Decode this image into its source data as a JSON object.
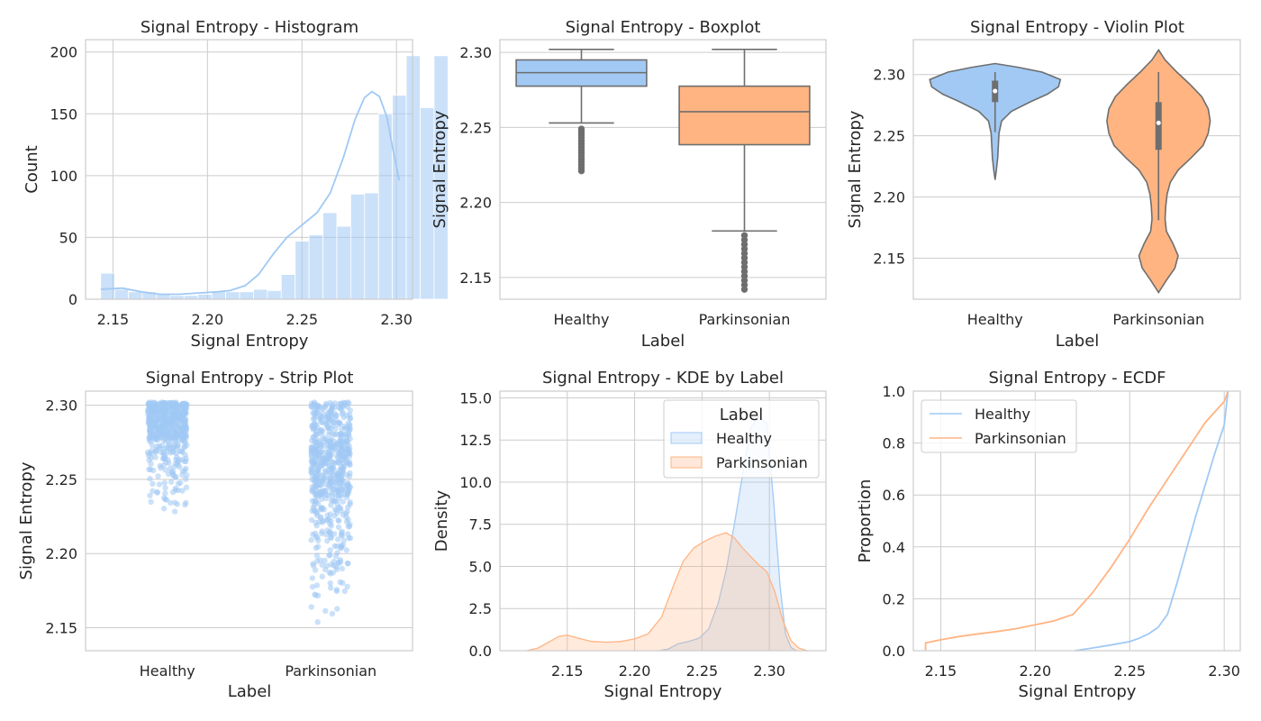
{
  "colors": {
    "healthy": "#a1c9f4",
    "parkinsonian": "#ffb482",
    "box_edge": "#6e6e6e",
    "grid": "#cccccc",
    "spine": "#cccccc",
    "text": "#262626"
  },
  "legend": {
    "title": "Label",
    "labels": [
      "Healthy",
      "Parkinsonian"
    ]
  },
  "chart_data": [
    {
      "id": "hist",
      "type": "bar",
      "title": "Signal Entropy - Histogram",
      "xlabel": "Signal Entropy",
      "ylabel": "Count",
      "xlim": [
        2.1355,
        2.3085
      ],
      "ylim": [
        0,
        210
      ],
      "xticks": [
        2.15,
        2.2,
        2.25,
        2.3
      ],
      "xtick_labels": [
        "2.15",
        "2.20",
        "2.25",
        "2.30"
      ],
      "yticks": [
        0,
        50,
        100,
        150,
        200
      ],
      "ytick_labels": [
        "0",
        "50",
        "100",
        "150",
        "200"
      ],
      "bins": {
        "start": 2.1435,
        "width": 0.00735
      },
      "values": [
        21,
        8,
        6,
        6,
        4,
        3,
        3,
        4,
        6,
        6,
        6,
        8,
        7,
        20,
        47,
        52,
        70,
        59,
        85,
        86,
        150,
        165,
        197,
        155,
        197
      ],
      "kde": {
        "x": [
          2.1435,
          2.155,
          2.165,
          2.175,
          2.185,
          2.195,
          2.205,
          2.212,
          2.22,
          2.227,
          2.235,
          2.242,
          2.25,
          2.258,
          2.265,
          2.272,
          2.278,
          2.283,
          2.287,
          2.291,
          2.295,
          2.298,
          2.3015
        ],
        "y": [
          8,
          9,
          6,
          4,
          4,
          5,
          6,
          7,
          11,
          20,
          37,
          50,
          60,
          70,
          86,
          115,
          145,
          163,
          168,
          164,
          147,
          122,
          96
        ]
      }
    },
    {
      "id": "box",
      "type": "box",
      "title": "Signal Entropy - Boxplot",
      "xlabel": "Label",
      "ylabel": "Signal Entropy",
      "ylim": [
        2.1355,
        2.3085
      ],
      "yticks": [
        2.15,
        2.2,
        2.25,
        2.3
      ],
      "ytick_labels": [
        "2.15",
        "2.20",
        "2.25",
        "2.30"
      ],
      "categories": [
        "Healthy",
        "Parkinsonian"
      ],
      "boxes": [
        {
          "whislo": 2.253,
          "q1": 2.2775,
          "med": 2.2865,
          "q3": 2.295,
          "whishi": 2.302,
          "outliers": [
            2.249,
            2.247,
            2.245,
            2.243,
            2.241,
            2.239,
            2.237,
            2.235,
            2.233,
            2.231,
            2.229,
            2.227,
            2.225,
            2.223,
            2.221
          ]
        },
        {
          "whislo": 2.181,
          "q1": 2.2385,
          "med": 2.2605,
          "q3": 2.2775,
          "whishi": 2.302,
          "outliers": [
            2.178,
            2.175,
            2.172,
            2.169,
            2.166,
            2.163,
            2.16,
            2.157,
            2.154,
            2.151,
            2.148,
            2.145,
            2.142
          ]
        }
      ]
    },
    {
      "id": "violin",
      "type": "violin",
      "title": "Signal Entropy - Violin Plot",
      "xlabel": "Label",
      "ylabel": "Signal Entropy",
      "ylim": [
        2.1165,
        2.3285
      ],
      "yticks": [
        2.15,
        2.2,
        2.25,
        2.3
      ],
      "ytick_labels": [
        "2.15",
        "2.20",
        "2.25",
        "2.30"
      ],
      "categories": [
        "Healthy",
        "Parkinsonian"
      ],
      "violins": [
        {
          "y": [
            2.214,
            2.222,
            2.232,
            2.242,
            2.252,
            2.262,
            2.27,
            2.278,
            2.284,
            2.29,
            2.296,
            2.302,
            2.306,
            2.309
          ],
          "w": [
            0,
            0.02,
            0.04,
            0.05,
            0.06,
            0.1,
            0.25,
            0.55,
            0.8,
            0.97,
            1.0,
            0.72,
            0.35,
            0
          ],
          "q1": 2.2775,
          "med": 2.2865,
          "q3": 2.295,
          "whislo": 2.253,
          "whishi": 2.302
        },
        {
          "y": [
            2.122,
            2.132,
            2.142,
            2.152,
            2.162,
            2.172,
            2.182,
            2.192,
            2.202,
            2.212,
            2.222,
            2.232,
            2.242,
            2.252,
            2.262,
            2.272,
            2.282,
            2.292,
            2.302,
            2.312,
            2.32
          ],
          "w": [
            0,
            0.12,
            0.25,
            0.3,
            0.22,
            0.12,
            0.1,
            0.11,
            0.13,
            0.18,
            0.3,
            0.5,
            0.68,
            0.76,
            0.79,
            0.76,
            0.66,
            0.48,
            0.28,
            0.1,
            0
          ],
          "q1": 2.2385,
          "med": 2.2605,
          "q3": 2.2775,
          "whislo": 2.181,
          "whishi": 2.302
        }
      ]
    },
    {
      "id": "strip",
      "type": "scatter",
      "title": "Signal Entropy - Strip Plot",
      "xlabel": "Label",
      "ylabel": "Signal Entropy",
      "ylim": [
        2.1345,
        2.3095
      ],
      "yticks": [
        2.15,
        2.2,
        2.25,
        2.3
      ],
      "ytick_labels": [
        "2.15",
        "2.20",
        "2.25",
        "2.30"
      ],
      "categories": [
        "Healthy",
        "Parkinsonian"
      ],
      "groups": [
        {
          "min": 2.221,
          "max": 2.302,
          "q1": 2.2775,
          "med": 2.2865,
          "q3": 2.295,
          "count": 560
        },
        {
          "min": 2.142,
          "max": 2.302,
          "q1": 2.2385,
          "med": 2.2605,
          "q3": 2.2775,
          "count": 600
        }
      ]
    },
    {
      "id": "kde",
      "type": "area",
      "title": "Signal Entropy - KDE by Label",
      "xlabel": "Signal Entropy",
      "ylabel": "Density",
      "xlim": [
        2.1,
        2.342
      ],
      "ylim": [
        0,
        15.4
      ],
      "xticks": [
        2.15,
        2.2,
        2.25,
        2.3
      ],
      "xtick_labels": [
        "2.15",
        "2.20",
        "2.25",
        "2.30"
      ],
      "yticks": [
        0,
        2.5,
        5,
        7.5,
        10,
        12.5,
        15
      ],
      "ytick_labels": [
        "0.0",
        "2.5",
        "5.0",
        "7.5",
        "10.0",
        "12.5",
        "15.0"
      ],
      "legend_loc": "upper right",
      "series": [
        {
          "name": "Healthy",
          "x": [
            2.218,
            2.225,
            2.232,
            2.24,
            2.248,
            2.255,
            2.262,
            2.268,
            2.274,
            2.28,
            2.286,
            2.292,
            2.298,
            2.303,
            2.308,
            2.312,
            2.316,
            2.32
          ],
          "y": [
            0,
            0.1,
            0.4,
            0.55,
            0.75,
            1.3,
            2.8,
            4.8,
            7.5,
            10.4,
            13.2,
            13.9,
            13.5,
            9.0,
            3.8,
            1.0,
            0.2,
            0
          ]
        },
        {
          "name": "Parkinsonian",
          "x": [
            2.12,
            2.128,
            2.136,
            2.144,
            2.15,
            2.158,
            2.168,
            2.18,
            2.19,
            2.2,
            2.21,
            2.22,
            2.228,
            2.236,
            2.244,
            2.252,
            2.26,
            2.268,
            2.274,
            2.28,
            2.286,
            2.292,
            2.298,
            2.304,
            2.31,
            2.316,
            2.322,
            2.328
          ],
          "y": [
            0,
            0.15,
            0.5,
            0.85,
            0.92,
            0.75,
            0.55,
            0.5,
            0.55,
            0.7,
            1.0,
            2.0,
            3.7,
            5.3,
            6.1,
            6.5,
            6.8,
            7.0,
            6.7,
            6.1,
            5.6,
            5.1,
            4.7,
            3.5,
            1.8,
            0.6,
            0.15,
            0
          ]
        }
      ]
    },
    {
      "id": "ecdf",
      "type": "line",
      "title": "Signal Entropy - ECDF",
      "xlabel": "Signal Entropy",
      "ylabel": "Proportion",
      "xlim": [
        2.1355,
        2.3085
      ],
      "ylim": [
        0,
        1
      ],
      "xticks": [
        2.15,
        2.2,
        2.25,
        2.3
      ],
      "xtick_labels": [
        "2.15",
        "2.20",
        "2.25",
        "2.30"
      ],
      "yticks": [
        0,
        0.2,
        0.4,
        0.6,
        0.8,
        1.0
      ],
      "ytick_labels": [
        "0.0",
        "0.2",
        "0.4",
        "0.6",
        "0.8",
        "1.0"
      ],
      "legend_loc": "upper left",
      "series": [
        {
          "name": "Healthy",
          "x": [
            2.221,
            2.23,
            2.24,
            2.25,
            2.255,
            2.26,
            2.265,
            2.27,
            2.275,
            2.28,
            2.285,
            2.29,
            2.295,
            2.3,
            2.302
          ],
          "y": [
            0,
            0.01,
            0.022,
            0.035,
            0.048,
            0.065,
            0.09,
            0.14,
            0.26,
            0.39,
            0.52,
            0.64,
            0.76,
            0.87,
            1.0
          ]
        },
        {
          "name": "Parkinsonian",
          "x": [
            2.142,
            2.142,
            2.15,
            2.16,
            2.17,
            2.18,
            2.19,
            2.2,
            2.21,
            2.22,
            2.23,
            2.24,
            2.25,
            2.26,
            2.27,
            2.28,
            2.29,
            2.3,
            2.302
          ],
          "y": [
            0,
            0.03,
            0.042,
            0.055,
            0.065,
            0.074,
            0.085,
            0.1,
            0.115,
            0.14,
            0.22,
            0.32,
            0.43,
            0.55,
            0.66,
            0.77,
            0.88,
            0.96,
            1.0
          ]
        }
      ]
    }
  ]
}
